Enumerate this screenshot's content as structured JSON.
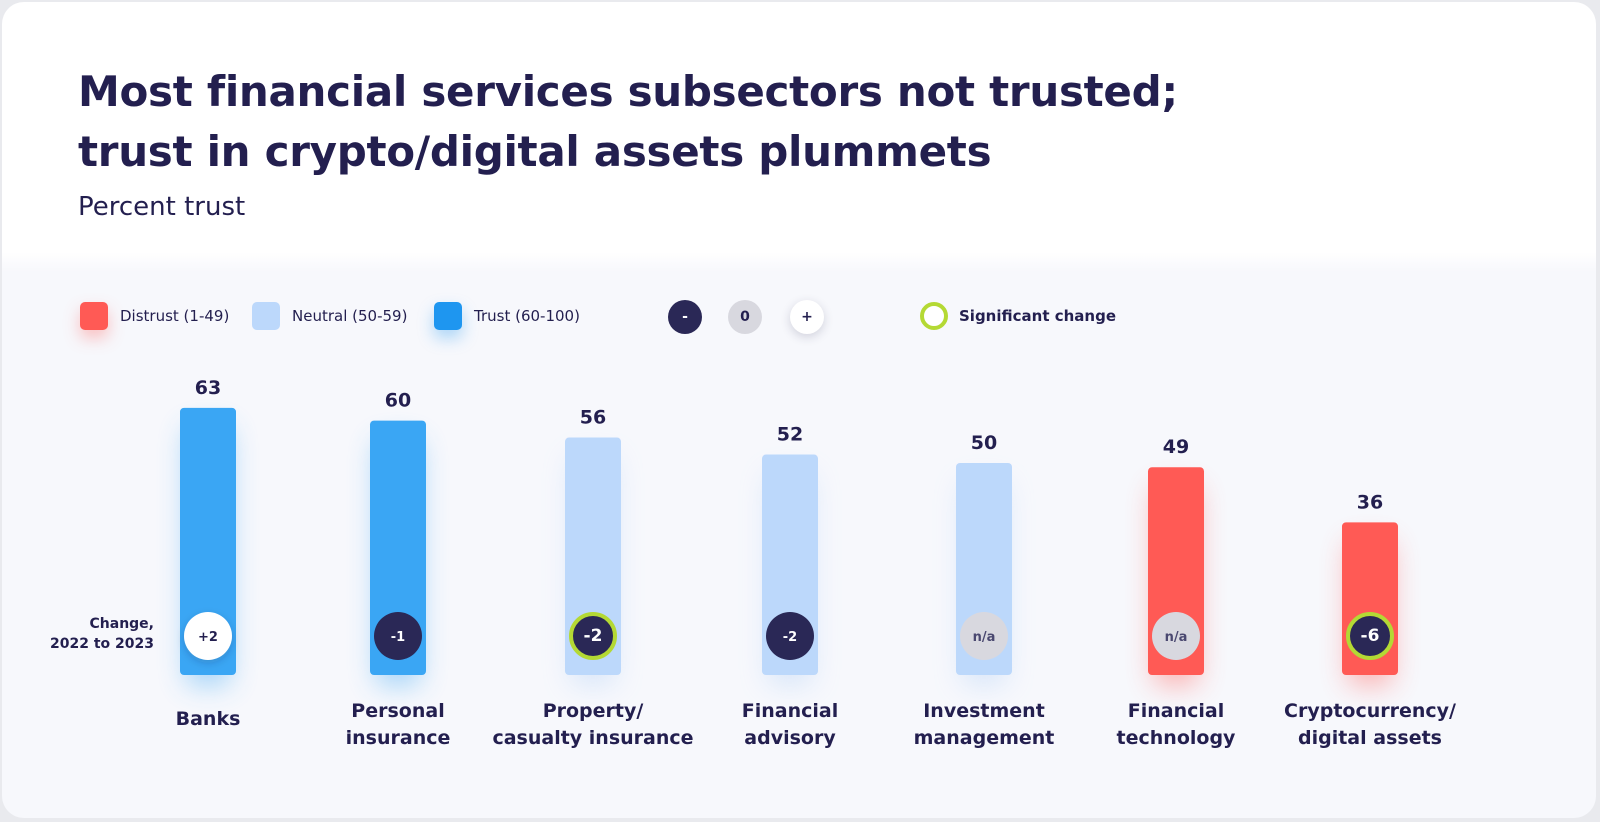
{
  "title_line1": "Most financial services subsectors not trusted;",
  "title_line2": "trust in crypto/digital assets plummets",
  "subtitle": "Percent trust",
  "legend": {
    "distrust": "Distrust (1-49)",
    "neutral": "Neutral (50-59)",
    "trust": "Trust (60-100)",
    "minus": "-",
    "zero": "0",
    "plus": "+",
    "significant": "Significant change"
  },
  "change_label_line1": "Change,",
  "change_label_line2": "2022 to 2023",
  "colors": {
    "distrust": "#ff5a55",
    "neutral": "#bcd8fb",
    "trust": "#3aa6f4",
    "negative": "#2a2856",
    "none": "#d8d8df",
    "positive": "#ffffff",
    "significant": "#b4d934"
  },
  "chart_data": {
    "type": "bar",
    "ylim": [
      0,
      100
    ],
    "series": [
      {
        "category": [
          "Banks"
        ],
        "value": 63,
        "band": "trust",
        "change": "+2",
        "change_dir": "positive",
        "significant": false
      },
      {
        "category": [
          "Personal",
          "insurance"
        ],
        "value": 60,
        "band": "trust",
        "change": "-1",
        "change_dir": "negative",
        "significant": false
      },
      {
        "category": [
          "Property/",
          "casualty insurance"
        ],
        "value": 56,
        "band": "neutral",
        "change": "-2",
        "change_dir": "negative",
        "significant": true
      },
      {
        "category": [
          "Financial",
          "advisory"
        ],
        "value": 52,
        "band": "neutral",
        "change": "-2",
        "change_dir": "negative",
        "significant": false
      },
      {
        "category": [
          "Investment",
          "management"
        ],
        "value": 50,
        "band": "neutral",
        "change": "n/a",
        "change_dir": "none",
        "significant": false
      },
      {
        "category": [
          "Financial",
          "technology"
        ],
        "value": 49,
        "band": "distrust",
        "change": "n/a",
        "change_dir": "none",
        "significant": false
      },
      {
        "category": [
          "Cryptocurrency/",
          "digital assets"
        ],
        "value": 36,
        "band": "distrust",
        "change": "-6",
        "change_dir": "negative",
        "significant": true
      }
    ]
  }
}
